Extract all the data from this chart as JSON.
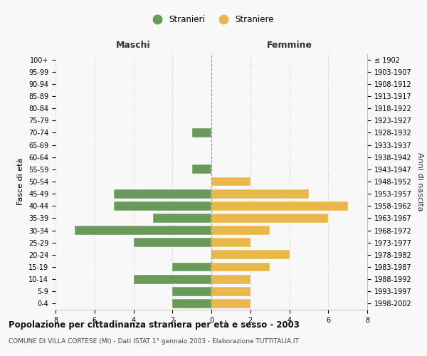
{
  "age_groups": [
    "0-4",
    "5-9",
    "10-14",
    "15-19",
    "20-24",
    "25-29",
    "30-34",
    "35-39",
    "40-44",
    "45-49",
    "50-54",
    "55-59",
    "60-64",
    "65-69",
    "70-74",
    "75-79",
    "80-84",
    "85-89",
    "90-94",
    "95-99",
    "100+"
  ],
  "birth_years": [
    "1998-2002",
    "1993-1997",
    "1988-1992",
    "1983-1987",
    "1978-1982",
    "1973-1977",
    "1968-1972",
    "1963-1967",
    "1958-1962",
    "1953-1957",
    "1948-1952",
    "1943-1947",
    "1938-1942",
    "1933-1937",
    "1928-1932",
    "1923-1927",
    "1918-1922",
    "1913-1917",
    "1908-1912",
    "1903-1907",
    "≤ 1902"
  ],
  "maschi": [
    2,
    2,
    4,
    2,
    0,
    4,
    7,
    3,
    5,
    5,
    0,
    1,
    0,
    0,
    1,
    0,
    0,
    0,
    0,
    0,
    0
  ],
  "femmine": [
    2,
    2,
    2,
    3,
    4,
    2,
    3,
    6,
    7,
    5,
    2,
    0,
    0,
    0,
    0,
    0,
    0,
    0,
    0,
    0,
    0
  ],
  "maschi_color": "#6a9a5a",
  "femmine_color": "#e8b84b",
  "title": "Popolazione per cittadinanza straniera per età e sesso - 2003",
  "subtitle": "COMUNE DI VILLA CORTESE (MI) - Dati ISTAT 1° gennaio 2003 - Elaborazione TUTTITALIA.IT",
  "xlabel_maschi": "Maschi",
  "xlabel_femmine": "Femmine",
  "ylabel_left": "Fasce di età",
  "ylabel_right": "Anni di nascita",
  "legend_maschi": "Stranieri",
  "legend_femmine": "Straniere",
  "xlim": 8,
  "bg_color": "#f8f8f8",
  "grid_color": "#cccccc",
  "bar_height": 0.75
}
